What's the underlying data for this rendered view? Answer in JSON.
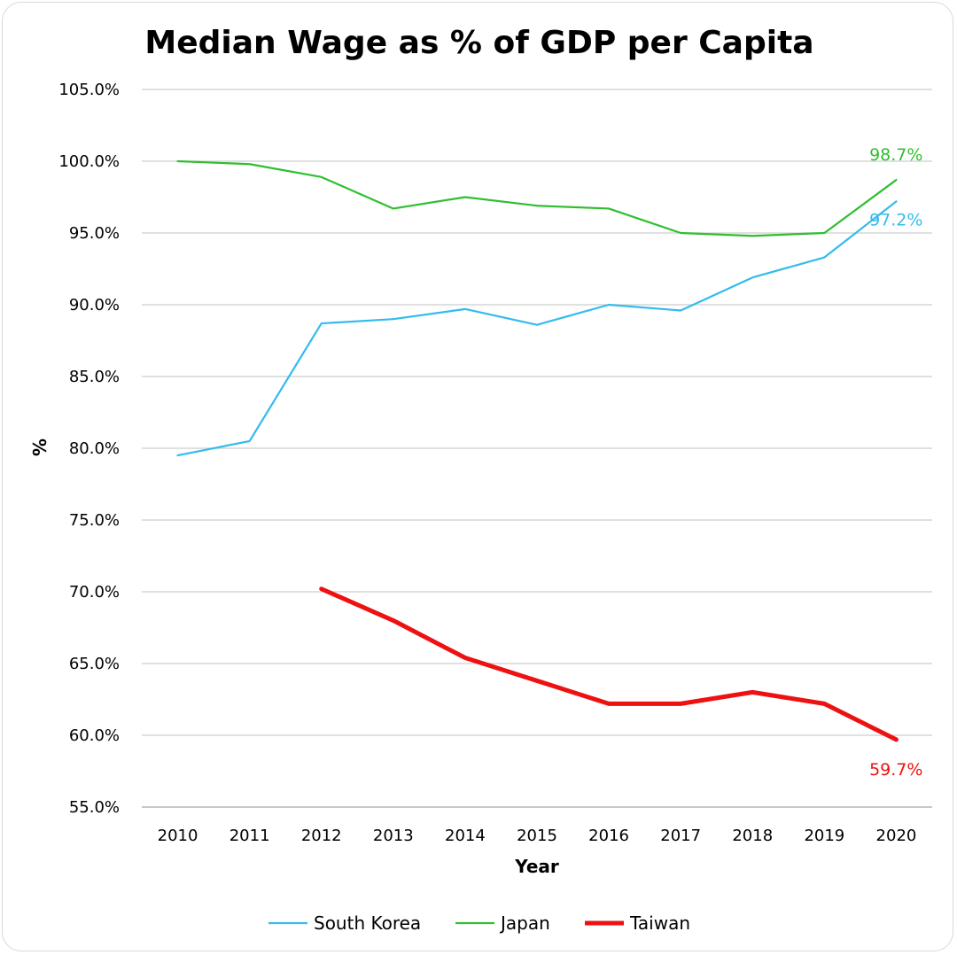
{
  "chart_data": {
    "type": "line",
    "title": "Median Wage as % of GDP per Capita",
    "xlabel": "Year",
    "ylabel": "%",
    "x": [
      "2010",
      "2011",
      "2012",
      "2013",
      "2014",
      "2015",
      "2016",
      "2017",
      "2018",
      "2019",
      "2020"
    ],
    "ylim": [
      55,
      105
    ],
    "ytick_step": 5,
    "yticks": [
      "55.0%",
      "60.0%",
      "65.0%",
      "70.0%",
      "75.0%",
      "80.0%",
      "85.0%",
      "90.0%",
      "95.0%",
      "100.0%",
      "105.0%"
    ],
    "grid": true,
    "legend_position": "bottom",
    "series": [
      {
        "name": "South Korea",
        "color": "#33bbee",
        "width": "thin",
        "values": [
          79.5,
          80.5,
          88.7,
          89.0,
          89.7,
          88.6,
          90.0,
          89.6,
          91.9,
          93.3,
          97.2
        ],
        "end_label": "97.2%"
      },
      {
        "name": "Japan",
        "color": "#2fbf2f",
        "width": "thin",
        "values": [
          100.0,
          99.8,
          98.9,
          96.7,
          97.5,
          96.9,
          96.7,
          95.0,
          94.8,
          95.0,
          98.7
        ],
        "end_label": "98.7%"
      },
      {
        "name": "Taiwan",
        "color": "#ee1111",
        "width": "thick",
        "values": [
          null,
          null,
          70.2,
          68.0,
          65.4,
          63.8,
          62.2,
          62.2,
          63.0,
          62.2,
          59.7
        ],
        "end_label": "59.7%"
      }
    ]
  }
}
